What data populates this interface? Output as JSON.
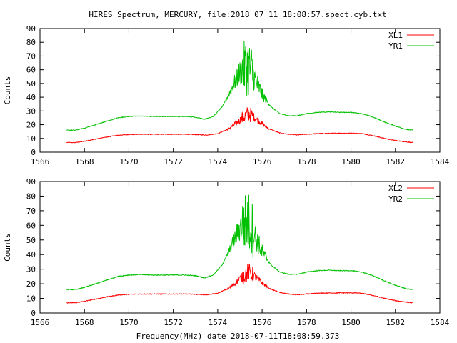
{
  "title": "HIRES Spectrum, MERCURY, file:2018_07_11_18:08:57.spect.cyb.txt",
  "xlabel_bottom": "Frequency(MHz) date 2018-07-11T18:08:59.373",
  "chart_data": [
    {
      "type": "line",
      "ylabel": "Counts",
      "xlim": [
        1566,
        1584
      ],
      "ylim": [
        0,
        90
      ],
      "x_ticks": [
        "1566",
        "1568",
        "1570",
        "1572",
        "1574",
        "1576",
        "1578",
        "1580",
        "1582",
        "1584"
      ],
      "y_ticks": [
        "0",
        "10",
        "20",
        "30",
        "40",
        "50",
        "60",
        "70",
        "80",
        "90"
      ],
      "legend_position": "top-right",
      "series": [
        {
          "name": "XL1",
          "color": "#ff0000",
          "points": [
            [
              1567.2,
              7
            ],
            [
              1567.6,
              7
            ],
            [
              1568.0,
              8
            ],
            [
              1568.5,
              9.5
            ],
            [
              1569.0,
              11
            ],
            [
              1569.5,
              12.3
            ],
            [
              1570.0,
              12.8
            ],
            [
              1570.5,
              13
            ],
            [
              1571.0,
              13
            ],
            [
              1571.5,
              13
            ],
            [
              1572.0,
              13
            ],
            [
              1572.5,
              13
            ],
            [
              1573.0,
              12.8
            ],
            [
              1573.5,
              12.5
            ],
            [
              1574.0,
              13.5
            ],
            [
              1574.5,
              17
            ],
            [
              1574.9,
              22
            ],
            [
              1575.2,
              26
            ],
            [
              1575.4,
              28
            ],
            [
              1575.6,
              26
            ],
            [
              1575.9,
              22
            ],
            [
              1576.3,
              17
            ],
            [
              1576.8,
              14
            ],
            [
              1577.2,
              13
            ],
            [
              1577.6,
              12.5
            ],
            [
              1578.0,
              13
            ],
            [
              1578.5,
              13.5
            ],
            [
              1579.0,
              13.7
            ],
            [
              1579.5,
              13.8
            ],
            [
              1580.0,
              13.8
            ],
            [
              1580.5,
              13.5
            ],
            [
              1581.0,
              12
            ],
            [
              1581.5,
              10
            ],
            [
              1582.0,
              8.5
            ],
            [
              1582.5,
              7.5
            ],
            [
              1582.8,
              7
            ]
          ]
        },
        {
          "name": "YR1",
          "color": "#00c000",
          "points": [
            [
              1567.2,
              16
            ],
            [
              1567.6,
              16
            ],
            [
              1568.0,
              17.5
            ],
            [
              1568.5,
              20
            ],
            [
              1569.0,
              22.5
            ],
            [
              1569.5,
              25
            ],
            [
              1570.0,
              26
            ],
            [
              1570.5,
              26.3
            ],
            [
              1571.0,
              26
            ],
            [
              1571.5,
              26
            ],
            [
              1572.0,
              26
            ],
            [
              1572.5,
              26
            ],
            [
              1573.0,
              25.5
            ],
            [
              1573.4,
              24
            ],
            [
              1573.8,
              26
            ],
            [
              1574.2,
              33
            ],
            [
              1574.5,
              42
            ],
            [
              1574.8,
              52
            ],
            [
              1575.0,
              58
            ],
            [
              1575.3,
              63
            ],
            [
              1575.5,
              60
            ],
            [
              1575.7,
              52
            ],
            [
              1576.0,
              42
            ],
            [
              1576.4,
              33
            ],
            [
              1576.8,
              28
            ],
            [
              1577.2,
              26.5
            ],
            [
              1577.6,
              26.5
            ],
            [
              1578.0,
              28
            ],
            [
              1578.5,
              29
            ],
            [
              1579.0,
              29.3
            ],
            [
              1579.5,
              29
            ],
            [
              1580.0,
              29
            ],
            [
              1580.5,
              28
            ],
            [
              1581.0,
              25.5
            ],
            [
              1581.5,
              22
            ],
            [
              1582.0,
              19
            ],
            [
              1582.5,
              16.5
            ],
            [
              1582.8,
              16
            ]
          ]
        }
      ]
    },
    {
      "type": "line",
      "ylabel": "Counts",
      "xlabel": "Frequency(MHz) date 2018-07-11T18:08:59.373",
      "xlim": [
        1566,
        1584
      ],
      "ylim": [
        0,
        90
      ],
      "x_ticks": [
        "1566",
        "1568",
        "1570",
        "1572",
        "1574",
        "1576",
        "1578",
        "1580",
        "1582",
        "1584"
      ],
      "y_ticks": [
        "0",
        "10",
        "20",
        "30",
        "40",
        "50",
        "60",
        "70",
        "80",
        "90"
      ],
      "legend_position": "top-right",
      "series": [
        {
          "name": "XL2",
          "color": "#ff0000",
          "points": [
            [
              1567.2,
              7
            ],
            [
              1567.6,
              7
            ],
            [
              1568.0,
              8
            ],
            [
              1568.5,
              9.5
            ],
            [
              1569.0,
              11
            ],
            [
              1569.5,
              12.3
            ],
            [
              1570.0,
              12.8
            ],
            [
              1570.5,
              13
            ],
            [
              1571.0,
              13
            ],
            [
              1571.5,
              13
            ],
            [
              1572.0,
              13
            ],
            [
              1572.5,
              13
            ],
            [
              1573.0,
              12.8
            ],
            [
              1573.5,
              12.5
            ],
            [
              1574.0,
              13.5
            ],
            [
              1574.5,
              17
            ],
            [
              1574.9,
              22
            ],
            [
              1575.2,
              26
            ],
            [
              1575.4,
              28
            ],
            [
              1575.6,
              26
            ],
            [
              1575.9,
              22
            ],
            [
              1576.3,
              17
            ],
            [
              1576.8,
              14
            ],
            [
              1577.2,
              13
            ],
            [
              1577.6,
              12.5
            ],
            [
              1578.0,
              13
            ],
            [
              1578.5,
              13.5
            ],
            [
              1579.0,
              13.7
            ],
            [
              1579.5,
              13.8
            ],
            [
              1580.0,
              13.8
            ],
            [
              1580.5,
              13.5
            ],
            [
              1581.0,
              12
            ],
            [
              1581.5,
              10
            ],
            [
              1582.0,
              8.5
            ],
            [
              1582.5,
              7.5
            ],
            [
              1582.8,
              7
            ]
          ]
        },
        {
          "name": "YR2",
          "color": "#00c000",
          "points": [
            [
              1567.2,
              16
            ],
            [
              1567.6,
              16
            ],
            [
              1568.0,
              17.5
            ],
            [
              1568.5,
              20
            ],
            [
              1569.0,
              22.5
            ],
            [
              1569.5,
              25
            ],
            [
              1570.0,
              26
            ],
            [
              1570.5,
              26.3
            ],
            [
              1571.0,
              26
            ],
            [
              1571.5,
              26
            ],
            [
              1572.0,
              26
            ],
            [
              1572.5,
              26
            ],
            [
              1573.0,
              25.5
            ],
            [
              1573.4,
              24
            ],
            [
              1573.8,
              26
            ],
            [
              1574.2,
              33
            ],
            [
              1574.5,
              42
            ],
            [
              1574.8,
              52
            ],
            [
              1575.0,
              58
            ],
            [
              1575.3,
              63
            ],
            [
              1575.5,
              60
            ],
            [
              1575.7,
              52
            ],
            [
              1576.0,
              42
            ],
            [
              1576.4,
              33
            ],
            [
              1576.8,
              28
            ],
            [
              1577.2,
              26.5
            ],
            [
              1577.6,
              26.5
            ],
            [
              1578.0,
              28
            ],
            [
              1578.5,
              29
            ],
            [
              1579.0,
              29.3
            ],
            [
              1579.5,
              29
            ],
            [
              1580.0,
              29
            ],
            [
              1580.5,
              28
            ],
            [
              1581.0,
              25.5
            ],
            [
              1581.5,
              22
            ],
            [
              1582.0,
              19
            ],
            [
              1582.5,
              16.5
            ],
            [
              1582.8,
              16
            ]
          ]
        }
      ]
    }
  ]
}
